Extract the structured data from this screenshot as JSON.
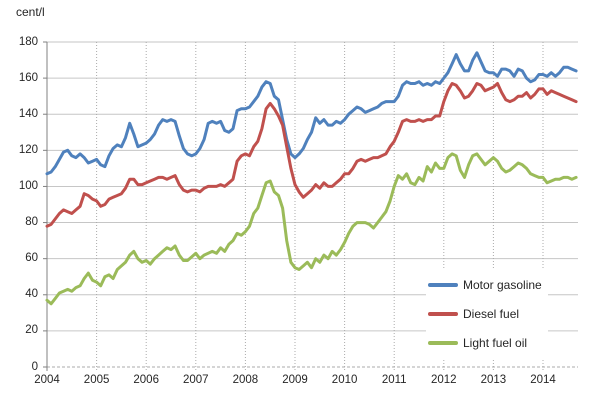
{
  "chart": {
    "unit_label": "cent/l"
  },
  "chart_data": {
    "type": "line",
    "title": "",
    "ylabel": "cent/l",
    "xlabel": "",
    "ylim": [
      0,
      180
    ],
    "ytick_step": 20,
    "ytick_labels": [
      "0",
      "20",
      "40",
      "60",
      "80",
      "100",
      "120",
      "140",
      "160",
      "180"
    ],
    "x_tick_labels": [
      "2004",
      "2005",
      "2006",
      "2007",
      "2008",
      "2009",
      "2010",
      "2011",
      "2012",
      "2013",
      "2014"
    ],
    "x_start": "2004-01",
    "x_interval": "monthly",
    "x_points": 129,
    "grid": {
      "horizontal": "solid",
      "vertical": "dotted",
      "bottom_axis": "dashed"
    },
    "legend_position": "inside-bottom-right",
    "style": {
      "gridline_color": "#C6C6C6",
      "dotted_grid_color": "#ABABAB",
      "axis_color": "#808080",
      "text_color": "#262626",
      "background": "#FFFFFF"
    },
    "series": [
      {
        "name": "Motor gasoline",
        "color": "#4F81BD",
        "values": [
          107,
          108,
          111,
          115,
          119,
          120,
          117,
          116,
          118,
          116,
          113,
          114,
          115,
          112,
          111,
          117,
          121,
          123,
          122,
          127,
          135,
          129,
          122,
          123,
          124,
          126,
          129,
          134,
          137,
          136,
          137,
          136,
          128,
          121,
          118,
          117,
          118,
          121,
          126,
          135,
          136,
          135,
          136,
          131,
          130,
          132,
          142,
          143,
          143,
          144,
          147,
          150,
          155,
          158,
          157,
          150,
          148,
          137,
          126,
          118,
          116,
          118,
          121,
          126,
          130,
          138,
          135,
          137,
          134,
          134,
          136,
          135,
          137,
          140,
          142,
          144,
          143,
          141,
          142,
          143,
          144,
          146,
          147,
          147,
          147,
          150,
          156,
          158,
          157,
          157,
          158,
          156,
          157,
          156,
          158,
          157,
          160,
          163,
          168,
          173,
          168,
          164,
          164,
          170,
          174,
          169,
          164,
          163,
          163,
          161,
          165,
          165,
          164,
          161,
          165,
          164,
          160,
          158,
          159,
          162,
          162,
          161,
          163,
          161,
          163,
          166,
          166,
          165,
          164
        ]
      },
      {
        "name": "Diesel fuel",
        "color": "#C0504D",
        "values": [
          78,
          79,
          82,
          85,
          87,
          86,
          85,
          87,
          89,
          96,
          95,
          93,
          92,
          89,
          90,
          93,
          94,
          95,
          96,
          99,
          104,
          104,
          101,
          101,
          102,
          103,
          104,
          105,
          105,
          104,
          105,
          106,
          101,
          98,
          97,
          98,
          98,
          97,
          99,
          100,
          100,
          100,
          101,
          100,
          102,
          104,
          114,
          117,
          118,
          117,
          122,
          125,
          132,
          143,
          146,
          143,
          139,
          134,
          122,
          110,
          101,
          97,
          94,
          96,
          98,
          101,
          99,
          102,
          100,
          100,
          102,
          104,
          107,
          107,
          110,
          114,
          115,
          114,
          115,
          116,
          116,
          117,
          118,
          122,
          125,
          130,
          136,
          137,
          136,
          136,
          137,
          136,
          137,
          137,
          139,
          139,
          147,
          153,
          157,
          156,
          153,
          149,
          150,
          153,
          157,
          156,
          153,
          154,
          155,
          157,
          152,
          148,
          147,
          148,
          150,
          150,
          152,
          149,
          151,
          154,
          154,
          151,
          153,
          152,
          151,
          150,
          149,
          148,
          147
        ]
      },
      {
        "name": "Light fuel oil",
        "color": "#9BBB59",
        "values": [
          37,
          35,
          38,
          41,
          42,
          43,
          42,
          44,
          45,
          49,
          52,
          48,
          47,
          45,
          50,
          51,
          49,
          54,
          56,
          58,
          62,
          64,
          60,
          58,
          59,
          57,
          60,
          62,
          64,
          66,
          65,
          67,
          62,
          59,
          59,
          61,
          63,
          60,
          62,
          63,
          64,
          63,
          66,
          64,
          68,
          70,
          74,
          73,
          75,
          78,
          85,
          88,
          95,
          102,
          103,
          97,
          95,
          88,
          70,
          58,
          55,
          54,
          56,
          58,
          55,
          60,
          58,
          62,
          60,
          64,
          62,
          65,
          69,
          74,
          78,
          80,
          80,
          80,
          79,
          77,
          80,
          83,
          86,
          92,
          100,
          106,
          104,
          107,
          102,
          101,
          105,
          103,
          111,
          108,
          113,
          110,
          110,
          116,
          118,
          117,
          109,
          105,
          112,
          117,
          118,
          115,
          112,
          114,
          116,
          114,
          110,
          108,
          109,
          111,
          113,
          112,
          110,
          107,
          106,
          105,
          105,
          102,
          103,
          104,
          104,
          105,
          105,
          104,
          105
        ]
      }
    ]
  }
}
